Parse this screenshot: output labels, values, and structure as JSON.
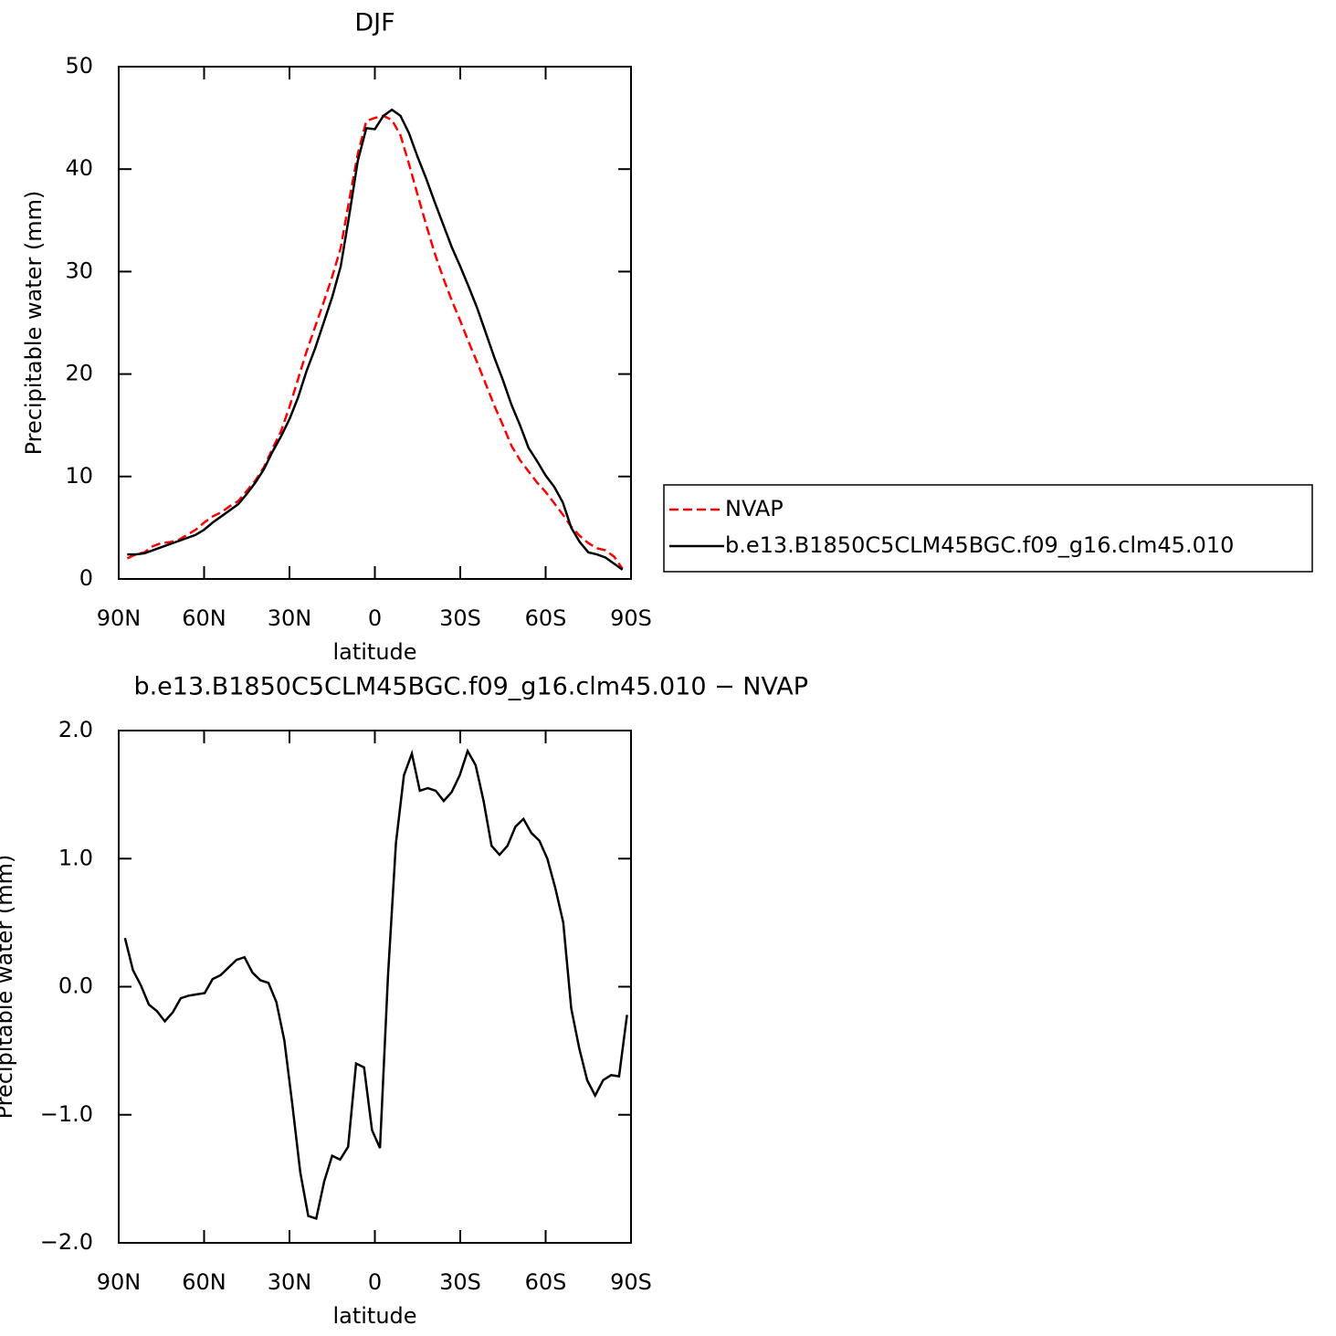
{
  "chart_data": [
    {
      "type": "line",
      "title": "DJF",
      "xlabel": "latitude",
      "ylabel": "Precipitable water (mm)",
      "x": [
        87,
        84,
        81,
        78,
        75,
        72,
        69,
        66,
        63,
        60,
        57,
        54,
        51,
        48,
        45,
        42,
        39,
        36,
        33,
        30,
        27,
        24,
        21,
        18,
        15,
        12,
        9,
        6,
        3,
        0,
        -3,
        -6,
        -9,
        -12,
        -15,
        -18,
        -21,
        -24,
        -27,
        -30,
        -33,
        -36,
        -39,
        -42,
        -45,
        -48,
        -51,
        -54,
        -57,
        -60,
        -63,
        -66,
        -69,
        -72,
        -75,
        -78,
        -81,
        -84,
        -87
      ],
      "series": [
        {
          "name": "NVAP",
          "color": "#ff0000",
          "linestyle": "dashed",
          "values": [
            2.0,
            2.4,
            2.6,
            3.2,
            3.5,
            3.6,
            3.8,
            4.3,
            4.8,
            5.5,
            6.1,
            6.5,
            7.1,
            7.6,
            8.6,
            9.6,
            10.9,
            12.7,
            14.4,
            16.8,
            19.5,
            22.2,
            24.6,
            27.0,
            29.5,
            32.3,
            37.0,
            41.5,
            44.7,
            45.0,
            45.2,
            44.8,
            43.3,
            40.5,
            37.5,
            34.6,
            31.8,
            29.4,
            27.2,
            25.2,
            23.1,
            21.1,
            19.0,
            16.9,
            15.0,
            13.0,
            11.6,
            10.5,
            9.4,
            8.5,
            7.4,
            6.3,
            5.1,
            4.2,
            3.5,
            3.0,
            2.8,
            2.2,
            1.0
          ]
        },
        {
          "name": "b.e13.B1850C5CLM45BGC.f09_g16.clm45.010",
          "color": "#000000",
          "linestyle": "solid",
          "values": [
            2.4,
            2.4,
            2.5,
            2.8,
            3.1,
            3.4,
            3.7,
            4.0,
            4.3,
            4.8,
            5.5,
            6.1,
            6.7,
            7.3,
            8.3,
            9.4,
            10.7,
            12.4,
            13.9,
            15.6,
            17.7,
            20.3,
            22.5,
            25.0,
            27.5,
            30.5,
            35.5,
            40.8,
            44.0,
            43.9,
            45.2,
            45.8,
            45.2,
            43.5,
            41.2,
            39.1,
            36.8,
            34.6,
            32.4,
            30.5,
            28.5,
            26.4,
            24.0,
            21.6,
            19.4,
            17.0,
            15.0,
            12.8,
            11.5,
            10.1,
            9.0,
            7.5,
            5.0,
            3.6,
            2.6,
            2.4,
            2.1,
            1.5,
            0.9
          ]
        }
      ],
      "xlim": [
        90,
        -90
      ],
      "xticks": [
        {
          "value": 90,
          "label": "90N"
        },
        {
          "value": 60,
          "label": "60N"
        },
        {
          "value": 30,
          "label": "30N"
        },
        0,
        {
          "value": -30,
          "label": "30S"
        },
        {
          "value": -60,
          "label": "60S"
        },
        {
          "value": -90,
          "label": "90S"
        }
      ],
      "ylim": [
        0,
        50
      ],
      "yticks": [
        0,
        10,
        20,
        30,
        40,
        50
      ],
      "legend": "right"
    },
    {
      "type": "line",
      "title": "b.e13.B1850C5CLM45BGC.f09_g16.clm45.010 − NVAP",
      "xlabel": "latitude",
      "ylabel": "Precipitable water (mm)",
      "x": [
        87.8,
        85.0,
        82.2,
        79.4,
        76.6,
        73.8,
        71.0,
        68.2,
        65.4,
        62.6,
        59.8,
        57.0,
        54.2,
        51.4,
        48.6,
        45.8,
        43.0,
        40.2,
        37.4,
        34.6,
        31.8,
        29.0,
        26.2,
        23.4,
        20.6,
        17.8,
        15.0,
        12.2,
        9.4,
        6.6,
        3.8,
        1.0,
        -1.8,
        -4.6,
        -7.4,
        -10.2,
        -13.0,
        -15.8,
        -18.6,
        -21.4,
        -24.2,
        -27.0,
        -29.8,
        -32.6,
        -35.4,
        -38.2,
        -41.0,
        -43.8,
        -46.6,
        -49.4,
        -52.2,
        -55.0,
        -57.8,
        -60.6,
        -63.4,
        -66.2,
        -69.0,
        -71.8,
        -74.6,
        -77.4,
        -80.2,
        -83.0,
        -85.8,
        -88.6
      ],
      "series": [
        {
          "color": "#000000",
          "linestyle": "solid",
          "values": [
            0.38,
            0.13,
            0.01,
            -0.14,
            -0.19,
            -0.27,
            -0.2,
            -0.09,
            -0.07,
            -0.06,
            -0.05,
            0.06,
            0.09,
            0.15,
            0.21,
            0.23,
            0.11,
            0.05,
            0.03,
            -0.12,
            -0.42,
            -0.92,
            -1.45,
            -1.79,
            -1.81,
            -1.52,
            -1.32,
            -1.35,
            -1.25,
            -0.6,
            -0.63,
            -1.12,
            -1.26,
            0.08,
            1.12,
            1.65,
            1.82,
            1.53,
            1.55,
            1.53,
            1.45,
            1.52,
            1.65,
            1.84,
            1.73,
            1.45,
            1.1,
            1.03,
            1.1,
            1.25,
            1.31,
            1.2,
            1.14,
            1.0,
            0.77,
            0.5,
            -0.17,
            -0.48,
            -0.73,
            -0.85,
            -0.73,
            -0.69,
            -0.7,
            -0.22
          ]
        }
      ],
      "xlim": [
        90,
        -90
      ],
      "xticks": [
        {
          "value": 90,
          "label": "90N"
        },
        {
          "value": 60,
          "label": "60N"
        },
        {
          "value": 30,
          "label": "30N"
        },
        0,
        {
          "value": -30,
          "label": "30S"
        },
        {
          "value": -60,
          "label": "60S"
        },
        {
          "value": -90,
          "label": "90S"
        }
      ],
      "ylim": [
        -2,
        2
      ],
      "yticks": [
        {
          "value": -2,
          "label": "−2.0"
        },
        {
          "value": -1,
          "label": "−1.0"
        },
        {
          "value": 0,
          "label": "0.0"
        },
        {
          "value": 1,
          "label": "1.0"
        },
        {
          "value": 2,
          "label": "2.0"
        }
      ]
    }
  ]
}
